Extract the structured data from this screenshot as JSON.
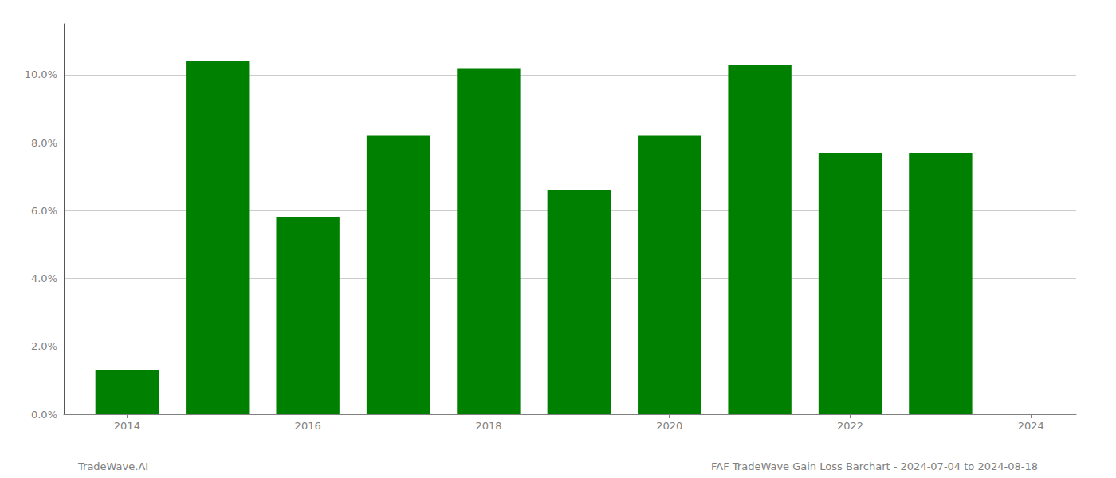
{
  "chart_data": {
    "type": "bar",
    "x": [
      2014,
      2015,
      2016,
      2017,
      2018,
      2019,
      2020,
      2021,
      2022,
      2023
    ],
    "values": [
      0.013,
      0.104,
      0.058,
      0.082,
      0.102,
      0.066,
      0.082,
      0.103,
      0.077,
      0.077
    ],
    "color": "#008000",
    "xlim": [
      2013.3,
      2024.5
    ],
    "xticks": [
      2014,
      2016,
      2018,
      2020,
      2022,
      2024
    ],
    "ylim": [
      0,
      0.115
    ],
    "yticks": [
      {
        "value": 0.0,
        "label": "0.0%"
      },
      {
        "value": 0.02,
        "label": "2.0%"
      },
      {
        "value": 0.04,
        "label": "4.0%"
      },
      {
        "value": 0.06,
        "label": "6.0%"
      },
      {
        "value": 0.08,
        "label": "8.0%"
      },
      {
        "value": 0.1,
        "label": "10.0%"
      }
    ],
    "grid": true,
    "annotations": [
      "TradeWave.AI",
      "FAF TradeWave Gain Loss Barchart - 2024-07-04 to 2024-08-18"
    ]
  }
}
